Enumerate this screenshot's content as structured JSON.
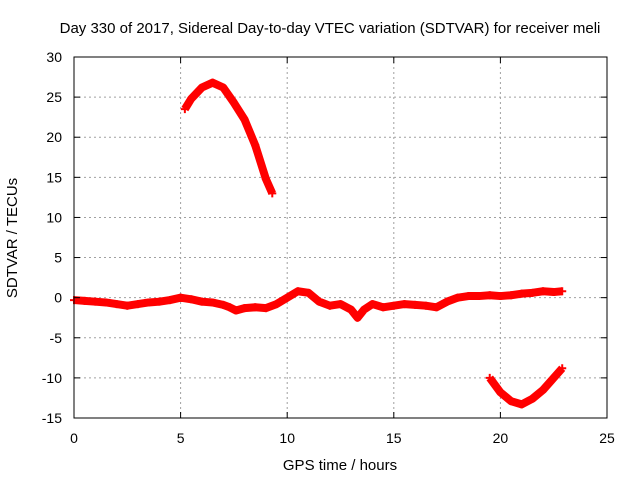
{
  "chart_data": {
    "type": "line",
    "title": "Day 330 of 2017, Sidereal Day-to-day VTEC variation (SDTVAR) for receiver meli",
    "xlabel": "GPS time / hours",
    "ylabel": "SDTVAR / TECUs",
    "xlim": [
      0,
      25
    ],
    "ylim": [
      -15,
      30
    ],
    "xticks": [
      0,
      5,
      10,
      15,
      20,
      25
    ],
    "yticks": [
      -15,
      -10,
      -5,
      0,
      5,
      10,
      15,
      20,
      25,
      30
    ],
    "grid": true,
    "legend": "none",
    "series_color": "#ff0000",
    "series": [
      {
        "name": "main-track",
        "x": [
          0,
          0.5,
          1.0,
          1.5,
          2.0,
          2.5,
          3.0,
          3.5,
          4.0,
          4.5,
          5.0,
          5.5,
          6.0,
          6.5,
          7.0,
          7.3,
          7.6,
          8.0,
          8.5,
          9.0,
          9.5,
          10.0,
          10.5,
          11.0,
          11.5,
          12.0,
          12.5,
          13.0,
          13.3,
          13.6,
          14.0,
          14.5,
          15.0,
          15.5,
          16.0,
          16.5,
          17.0,
          17.5,
          18.0,
          18.5,
          19.0,
          19.5,
          20.0,
          20.5,
          21.0,
          21.5,
          22.0,
          22.5,
          22.9
        ],
        "y": [
          -0.3,
          -0.4,
          -0.5,
          -0.6,
          -0.8,
          -1.0,
          -0.8,
          -0.6,
          -0.5,
          -0.3,
          0.0,
          -0.2,
          -0.5,
          -0.6,
          -0.9,
          -1.2,
          -1.6,
          -1.3,
          -1.2,
          -1.3,
          -0.8,
          0.0,
          0.8,
          0.6,
          -0.5,
          -1.0,
          -0.8,
          -1.5,
          -2.5,
          -1.5,
          -0.8,
          -1.2,
          -1.0,
          -0.8,
          -0.9,
          -1.0,
          -1.2,
          -0.5,
          0.0,
          0.2,
          0.2,
          0.3,
          0.2,
          0.3,
          0.5,
          0.6,
          0.8,
          0.7,
          0.8
        ]
      },
      {
        "name": "upper-arc",
        "x": [
          5.2,
          5.5,
          6.0,
          6.5,
          7.0,
          7.5,
          8.0,
          8.5,
          9.0,
          9.3
        ],
        "y": [
          23.5,
          24.8,
          26.2,
          26.8,
          26.2,
          24.3,
          22.2,
          19.0,
          14.8,
          13.0
        ]
      },
      {
        "name": "lower-arc",
        "x": [
          19.5,
          20.0,
          20.5,
          21.0,
          21.5,
          22.0,
          22.5,
          22.9
        ],
        "y": [
          -10.0,
          -11.8,
          -12.9,
          -13.3,
          -12.6,
          -11.5,
          -10.0,
          -8.8
        ]
      }
    ]
  }
}
